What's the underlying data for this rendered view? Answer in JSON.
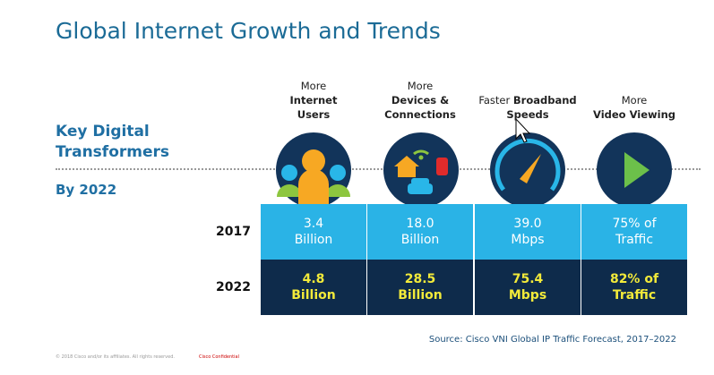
{
  "title": "Global Internet Growth and Trends",
  "side": {
    "heading": "Key Digital Transformers",
    "subheading": "By 2022"
  },
  "columns": [
    {
      "header": [
        [
          {
            "text": "More",
            "bold": false
          }
        ],
        [
          {
            "text": "Internet",
            "bold": true
          }
        ],
        [
          {
            "text": "Users",
            "bold": true
          }
        ]
      ]
    },
    {
      "header": [
        [
          {
            "text": "More",
            "bold": false
          }
        ],
        [
          {
            "text": "Devices &",
            "bold": true
          }
        ],
        [
          {
            "text": "Connections",
            "bold": true
          }
        ]
      ]
    },
    {
      "header": [
        [
          {
            "text": "Faster",
            "bold": false
          },
          {
            "text": "Broadband",
            "bold": true
          }
        ],
        [
          {
            "text": "Speeds",
            "bold": true
          }
        ]
      ]
    },
    {
      "header": [
        [
          {
            "text": "More",
            "bold": false
          }
        ],
        [
          {
            "text": "Video Viewing",
            "bold": true
          }
        ]
      ]
    }
  ],
  "rows": [
    {
      "label": "2017",
      "cells": [
        [
          "3.4",
          "Billion"
        ],
        [
          "18.0",
          "Billion"
        ],
        [
          "39.0",
          "Mbps"
        ],
        [
          "75% of",
          "Traffic"
        ]
      ]
    },
    {
      "label": "2022",
      "cells": [
        [
          "4.8",
          "Billion"
        ],
        [
          "28.5",
          "Billion"
        ],
        [
          "75.4",
          "Mbps"
        ],
        [
          "82% of",
          "Traffic"
        ]
      ]
    }
  ],
  "source": "Source: Cisco VNI Global IP Traffic Forecast, 2017–2022",
  "footer": {
    "copyright": "© 2018 Cisco and/or its affiliates. All rights reserved.",
    "confidential": "Cisco Confidential"
  }
}
